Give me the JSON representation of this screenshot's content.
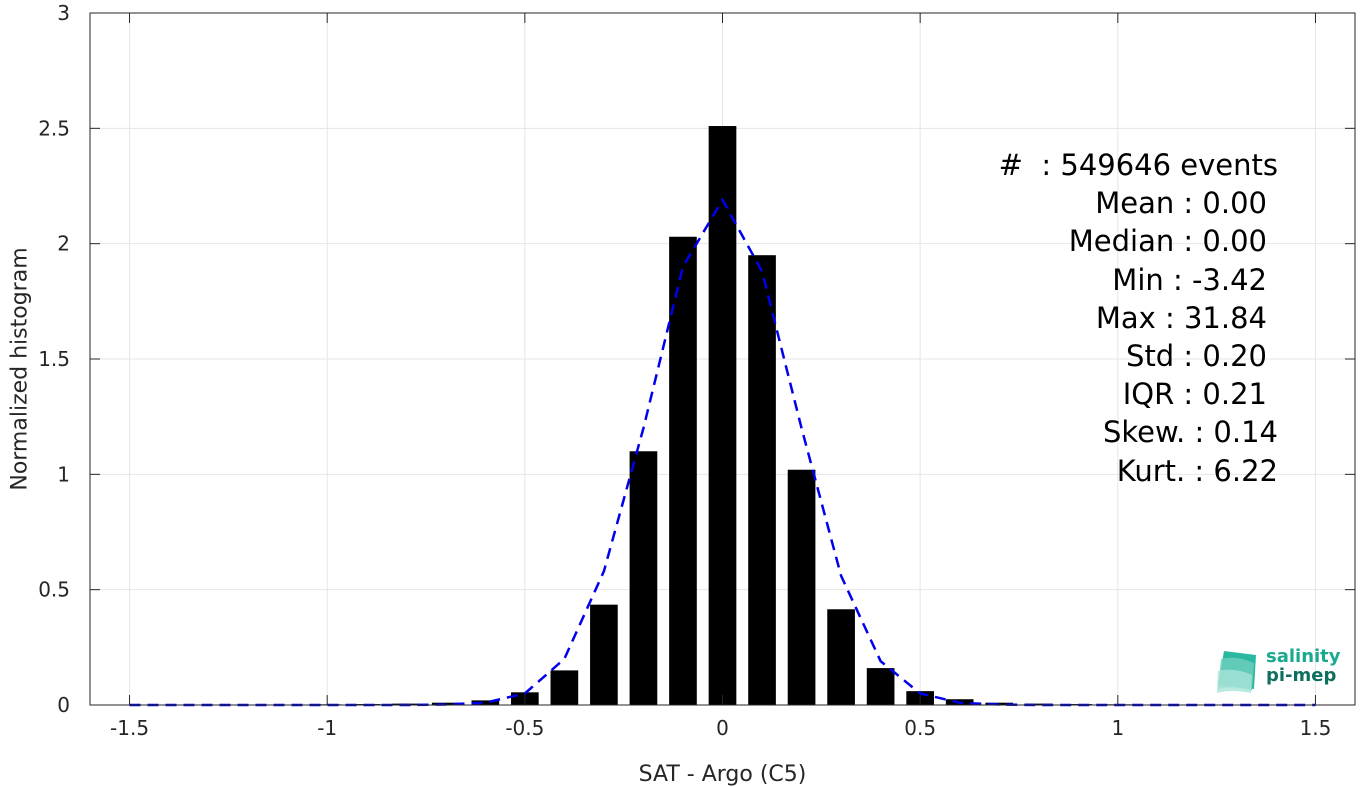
{
  "chart_data": {
    "type": "bar",
    "xlabel": "SAT - Argo (C5)",
    "ylabel": "Normalized histogram",
    "xlim": [
      -1.6,
      1.6
    ],
    "ylim": [
      0,
      3
    ],
    "xticks": [
      -1.5,
      -1,
      -0.5,
      0,
      0.5,
      1,
      1.5
    ],
    "xtick_labels": [
      "-1.5",
      "-1",
      "-0.5",
      "0",
      "0.5",
      "1",
      "1.5"
    ],
    "yticks": [
      0,
      0.5,
      1,
      1.5,
      2,
      2.5,
      3
    ],
    "ytick_labels": [
      "0",
      "0.5",
      "1",
      "1.5",
      "2",
      "2.5",
      "3"
    ],
    "grid": true,
    "bar_width": 0.07,
    "bars": {
      "x": [
        -1.5,
        -1.4,
        -1.3,
        -1.2,
        -1.1,
        -1.0,
        -0.9,
        -0.8,
        -0.7,
        -0.6,
        -0.5,
        -0.4,
        -0.3,
        -0.2,
        -0.1,
        0.0,
        0.1,
        0.2,
        0.3,
        0.4,
        0.5,
        0.6,
        0.7,
        0.8,
        0.9,
        1.0,
        1.1,
        1.2,
        1.3,
        1.4,
        1.5
      ],
      "values": [
        0.002,
        0.002,
        0.002,
        0.002,
        0.002,
        0.003,
        0.004,
        0.006,
        0.01,
        0.02,
        0.055,
        0.15,
        0.435,
        1.1,
        2.03,
        2.51,
        1.95,
        1.02,
        0.415,
        0.16,
        0.06,
        0.025,
        0.01,
        0.006,
        0.004,
        0.003,
        0.002,
        0.002,
        0.002,
        0.002,
        0.002
      ],
      "color": "#000000"
    },
    "fit_line": {
      "style": "dashed",
      "color": "#0000ee",
      "x": [
        -1.5,
        -1.4,
        -1.3,
        -1.2,
        -1.1,
        -1.0,
        -0.9,
        -0.8,
        -0.7,
        -0.6,
        -0.5,
        -0.4,
        -0.3,
        -0.2,
        -0.1,
        0.0,
        0.1,
        0.2,
        0.3,
        0.4,
        0.5,
        0.6,
        0.7,
        0.8,
        0.9,
        1.0,
        1.1,
        1.2,
        1.3,
        1.4,
        1.5
      ],
      "values": [
        0,
        0,
        0,
        0,
        0,
        0,
        0,
        0,
        0.002,
        0.01,
        0.05,
        0.2,
        0.58,
        1.2,
        1.9,
        2.19,
        1.88,
        1.2,
        0.56,
        0.19,
        0.05,
        0.01,
        0.002,
        0,
        0,
        0,
        0,
        0,
        0,
        0,
        0
      ]
    }
  },
  "stats": {
    "events": "#  : 549646 events",
    "mean": "Mean : 0.00",
    "median": "Median : 0.00",
    "min": "Min : -3.42",
    "max": "Max : 31.84",
    "std": "Std : 0.20",
    "iqr": "IQR : 0.21",
    "skew": "Skew. : 0.14",
    "kurt": "Kurt. : 6.22"
  },
  "logo": {
    "line1": "salinity",
    "line2": "pi-mep"
  }
}
